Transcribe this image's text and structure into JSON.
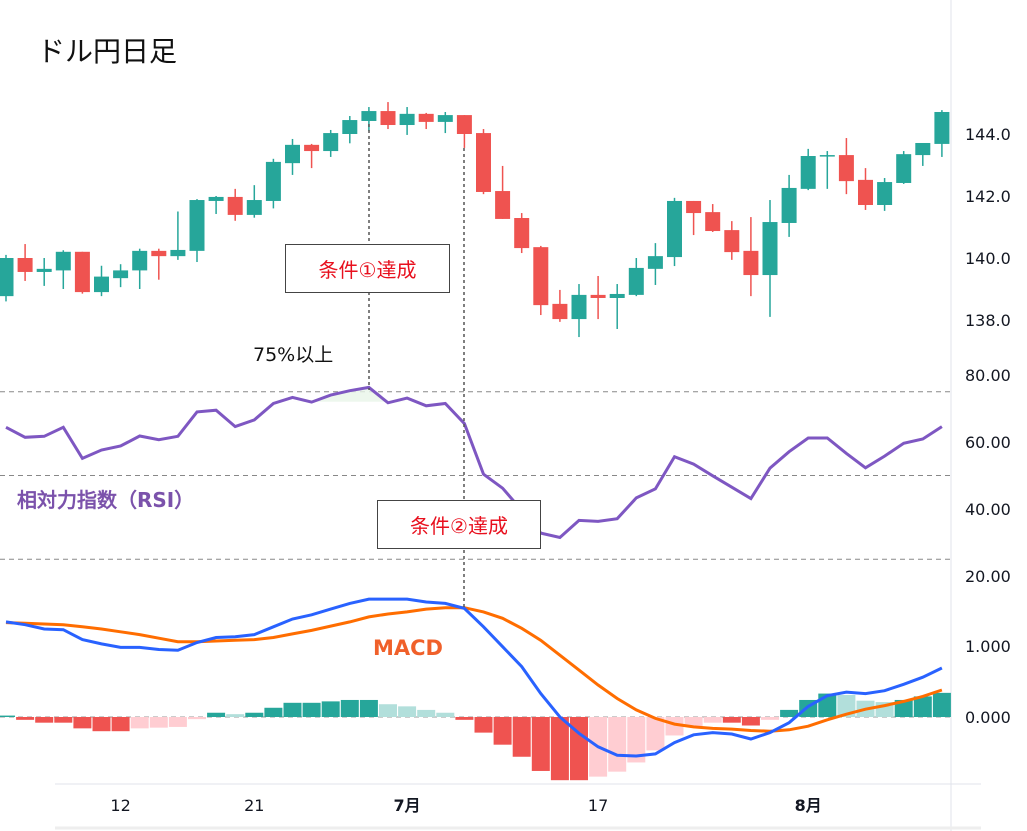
{
  "title": "ドル円日足",
  "annotations": {
    "condition1": "条件①達成",
    "condition2": "条件②達成",
    "rsi_threshold": "75%以上",
    "rsi_label": "相対力指数（RSI）",
    "macd_label": "MACD"
  },
  "colors": {
    "up": "#26a69a",
    "down": "#ef5350",
    "up_light": "#b2dfdb",
    "down_light": "#ffcdd2",
    "macd": "#2962ff",
    "signal": "#ff6d00",
    "rsi": "#7e57c2"
  },
  "chart_data": [
    {
      "type": "candlestick",
      "title": "ドル円日足",
      "yticks": [
        "144.0",
        "142.0",
        "140.0",
        "138.0"
      ],
      "ylim": [
        137.3,
        145.3
      ],
      "xticks": [
        {
          "label": "12",
          "at": 6
        },
        {
          "label": "21",
          "at": 13
        },
        {
          "label": "7月",
          "at": 21
        },
        {
          "label": "17",
          "at": 31
        },
        {
          "label": "8月",
          "at": 42
        }
      ],
      "ohlc": [
        [
          138.77,
          140.1,
          138.6,
          140.0
        ],
        [
          140.0,
          140.45,
          139.26,
          139.55
        ],
        [
          139.55,
          140.0,
          139.1,
          139.65
        ],
        [
          139.6,
          140.25,
          139.0,
          140.2
        ],
        [
          140.2,
          140.2,
          138.85,
          138.9
        ],
        [
          138.9,
          139.75,
          138.77,
          139.4
        ],
        [
          139.35,
          139.8,
          139.06,
          139.6
        ],
        [
          139.6,
          140.3,
          139.0,
          140.23
        ],
        [
          140.23,
          140.3,
          139.3,
          140.06
        ],
        [
          140.06,
          141.5,
          139.94,
          140.26
        ],
        [
          140.23,
          141.9,
          139.87,
          141.87
        ],
        [
          141.84,
          142.0,
          141.42,
          141.97
        ],
        [
          141.97,
          142.23,
          141.2,
          141.39
        ],
        [
          141.39,
          142.35,
          141.3,
          141.87
        ],
        [
          141.84,
          143.2,
          141.6,
          143.1
        ],
        [
          143.06,
          143.84,
          142.68,
          143.65
        ],
        [
          143.65,
          143.68,
          142.9,
          143.45
        ],
        [
          143.45,
          144.13,
          143.26,
          144.03
        ],
        [
          144.0,
          144.58,
          143.7,
          144.45
        ],
        [
          144.42,
          144.87,
          144.1,
          144.74
        ],
        [
          144.74,
          145.03,
          144.16,
          144.29
        ],
        [
          144.29,
          144.87,
          143.97,
          144.65
        ],
        [
          144.65,
          144.68,
          144.16,
          144.39
        ],
        [
          144.39,
          144.71,
          144.03,
          144.61
        ],
        [
          144.61,
          144.61,
          143.55,
          144.0
        ],
        [
          144.03,
          144.16,
          142.06,
          142.13
        ],
        [
          142.16,
          142.97,
          141.26,
          141.26
        ],
        [
          141.29,
          141.45,
          140.16,
          140.32
        ],
        [
          140.35,
          140.39,
          138.16,
          138.48
        ],
        [
          138.52,
          138.97,
          137.94,
          138.03
        ],
        [
          138.03,
          139.16,
          137.45,
          138.81
        ],
        [
          138.81,
          139.42,
          138.03,
          138.71
        ],
        [
          138.71,
          139.16,
          137.71,
          138.84
        ],
        [
          138.81,
          140.0,
          138.77,
          139.68
        ],
        [
          139.65,
          140.48,
          139.13,
          140.06
        ],
        [
          140.03,
          141.94,
          139.74,
          141.84
        ],
        [
          141.84,
          141.84,
          140.74,
          141.45
        ],
        [
          141.48,
          141.74,
          140.84,
          140.87
        ],
        [
          140.9,
          141.19,
          139.94,
          140.19
        ],
        [
          140.23,
          141.32,
          138.77,
          139.45
        ],
        [
          139.45,
          141.87,
          138.1,
          141.16
        ],
        [
          141.13,
          142.68,
          140.68,
          142.26
        ],
        [
          142.23,
          143.52,
          142.19,
          143.29
        ],
        [
          143.29,
          143.45,
          142.23,
          143.32
        ],
        [
          143.32,
          143.87,
          142.06,
          142.48
        ],
        [
          142.52,
          142.9,
          141.55,
          141.71
        ],
        [
          141.71,
          142.58,
          141.52,
          142.45
        ],
        [
          142.42,
          143.45,
          142.39,
          143.35
        ],
        [
          143.32,
          143.71,
          142.97,
          143.71
        ],
        [
          143.68,
          144.77,
          143.26,
          144.71
        ]
      ]
    },
    {
      "type": "line",
      "name": "相対力指数（RSI）",
      "yticks": [
        "80.00",
        "60.00",
        "40.00",
        "20.00"
      ],
      "levels": [
        75,
        50,
        25
      ],
      "values": [
        64.4,
        61.4,
        61.7,
        64.4,
        55.1,
        57.6,
        58.8,
        61.8,
        60.7,
        61.7,
        69.0,
        69.5,
        64.6,
        66.6,
        71.5,
        73.3,
        71.9,
        74.0,
        75.3,
        76.3,
        71.7,
        73.1,
        70.8,
        71.5,
        65.5,
        50.4,
        46.2,
        39.6,
        32.8,
        31.5,
        36.6,
        36.3,
        37.1,
        43.3,
        46.0,
        55.6,
        53.4,
        49.9,
        46.5,
        43.1,
        52.2,
        57.1,
        61.2,
        61.2,
        56.6,
        52.3,
        55.8,
        59.6,
        60.9,
        64.6
      ]
    },
    {
      "type": "line+bar",
      "name": "MACD",
      "yticks": [
        "1.000",
        "0.000"
      ],
      "macd": [
        1.34,
        1.3,
        1.24,
        1.23,
        1.09,
        1.03,
        0.98,
        0.98,
        0.95,
        0.94,
        1.05,
        1.12,
        1.13,
        1.16,
        1.27,
        1.38,
        1.44,
        1.52,
        1.6,
        1.66,
        1.66,
        1.66,
        1.62,
        1.6,
        1.53,
        1.27,
        0.99,
        0.71,
        0.33,
        0.0,
        -0.23,
        -0.42,
        -0.54,
        -0.55,
        -0.52,
        -0.36,
        -0.25,
        -0.22,
        -0.24,
        -0.31,
        -0.22,
        -0.08,
        0.15,
        0.3,
        0.35,
        0.33,
        0.37,
        0.46,
        0.56,
        0.69
      ],
      "signal": [
        1.33,
        1.32,
        1.31,
        1.3,
        1.27,
        1.24,
        1.2,
        1.16,
        1.11,
        1.06,
        1.06,
        1.07,
        1.08,
        1.09,
        1.12,
        1.17,
        1.22,
        1.28,
        1.34,
        1.41,
        1.45,
        1.48,
        1.52,
        1.54,
        1.54,
        1.48,
        1.39,
        1.25,
        1.08,
        0.87,
        0.66,
        0.45,
        0.26,
        0.1,
        -0.02,
        -0.1,
        -0.14,
        -0.16,
        -0.17,
        -0.19,
        -0.2,
        -0.18,
        -0.13,
        -0.04,
        0.04,
        0.11,
        0.16,
        0.22,
        0.29,
        0.38
      ],
      "histogram": [
        0.02,
        -0.04,
        -0.08,
        -0.08,
        -0.16,
        -0.2,
        -0.2,
        -0.16,
        -0.15,
        -0.14,
        -0.03,
        0.06,
        0.04,
        0.06,
        0.13,
        0.2,
        0.2,
        0.22,
        0.24,
        0.24,
        0.18,
        0.15,
        0.1,
        0.06,
        -0.04,
        -0.22,
        -0.39,
        -0.56,
        -0.76,
        -0.89,
        -0.89,
        -0.84,
        -0.77,
        -0.64,
        -0.47,
        -0.26,
        -0.13,
        -0.08,
        -0.08,
        -0.12,
        -0.04,
        0.1,
        0.24,
        0.33,
        0.31,
        0.23,
        0.21,
        0.24,
        0.29,
        0.34
      ]
    }
  ]
}
